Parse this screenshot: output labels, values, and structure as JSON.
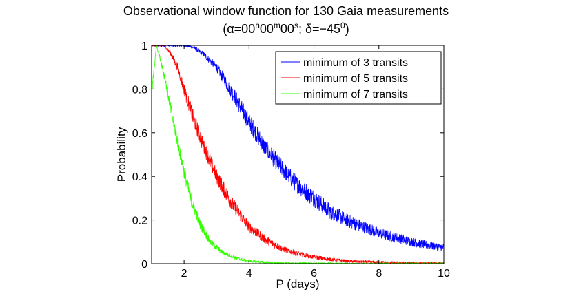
{
  "chart_data": {
    "type": "line",
    "title_line1": "Observational window function for 130 Gaia measurements",
    "title_parts": {
      "open": "(α=00",
      "h": "h",
      "mid1": "00",
      "m": "m",
      "mid2": "00",
      "s": "s",
      "mid3": "; δ=−45",
      "deg": "0",
      "close": ")"
    },
    "xlabel": "P (days)",
    "ylabel": "Probability",
    "xlim": [
      1,
      10
    ],
    "ylim": [
      0,
      1
    ],
    "xticks": [
      2,
      4,
      6,
      8,
      10
    ],
    "yticks": [
      0,
      0.2,
      0.4,
      0.6,
      0.8,
      1
    ],
    "ytick_labels": [
      "0",
      "0.2",
      "0.4",
      "0.6",
      "0.8",
      "1"
    ],
    "legend_position": "top-right",
    "series": [
      {
        "name": "minimum of 3 transits",
        "color": "#0000ff",
        "x": [
          1.0,
          1.5,
          2.0,
          2.3,
          2.6,
          3.0,
          3.5,
          4.0,
          4.5,
          5.0,
          5.5,
          6.0,
          6.5,
          7.0,
          7.5,
          8.0,
          8.5,
          9.0,
          9.5,
          10.0
        ],
        "values": [
          1.0,
          1.0,
          1.0,
          0.99,
          0.96,
          0.9,
          0.78,
          0.65,
          0.53,
          0.44,
          0.36,
          0.3,
          0.24,
          0.2,
          0.17,
          0.14,
          0.12,
          0.1,
          0.085,
          0.075
        ],
        "noise": 0.04
      },
      {
        "name": "minimum of 5 transits",
        "color": "#ff0000",
        "x": [
          1.0,
          1.4,
          1.6,
          1.8,
          2.0,
          2.3,
          2.6,
          3.0,
          3.5,
          4.0,
          4.5,
          5.0,
          5.5,
          6.0,
          6.5,
          7.0,
          8.0,
          9.0,
          10.0
        ],
        "values": [
          1.0,
          1.0,
          0.96,
          0.9,
          0.8,
          0.66,
          0.54,
          0.4,
          0.27,
          0.17,
          0.11,
          0.07,
          0.045,
          0.03,
          0.02,
          0.012,
          0.006,
          0.003,
          0.002
        ],
        "noise": 0.035
      },
      {
        "name": "minimum of 7 transits",
        "color": "#33ff00",
        "x": [
          1.0,
          1.15,
          1.3,
          1.45,
          1.6,
          1.8,
          2.0,
          2.2,
          2.5,
          2.8,
          3.2,
          3.6,
          4.0,
          4.5,
          5.0,
          6.0,
          7.0,
          8.0,
          10.0
        ],
        "values": [
          0.78,
          1.0,
          0.92,
          0.82,
          0.7,
          0.56,
          0.42,
          0.3,
          0.18,
          0.1,
          0.05,
          0.025,
          0.012,
          0.006,
          0.003,
          0.001,
          0.0,
          0.0,
          0.0
        ],
        "noise": 0.03
      }
    ]
  }
}
